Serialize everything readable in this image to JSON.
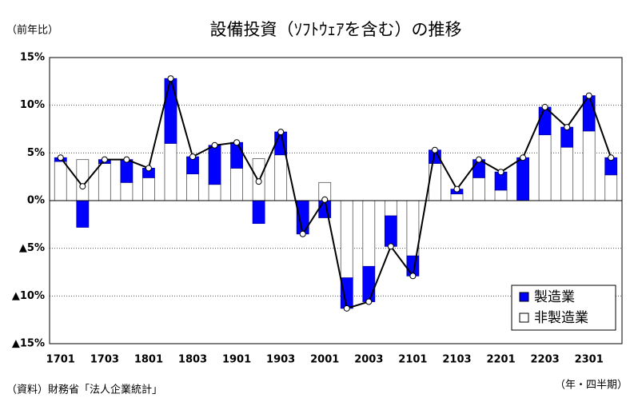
{
  "chart_data": {
    "type": "bar",
    "title": "設備投資（ｿﾌﾄｳｪｱを含む）の推移",
    "y_label": "（前年比）",
    "source": "（資料）財務省「法人企業統計」",
    "x_label": "（年・四半期）",
    "stacked": true,
    "line_total": true,
    "categories": [
      "1701",
      null,
      "1703",
      null,
      "1801",
      null,
      "1803",
      null,
      "1901",
      null,
      "1903",
      null,
      "2001",
      null,
      "2003",
      null,
      "2101",
      null,
      "2103",
      null,
      "2201",
      null,
      "2203",
      null,
      "2301",
      null
    ],
    "series": [
      {
        "name": "製造業",
        "color": "#0000ff",
        "values": [
          0.4,
          -2.8,
          0.4,
          2.4,
          1.0,
          6.8,
          1.8,
          4.1,
          2.7,
          -2.4,
          2.4,
          -3.5,
          -1.8,
          -3.2,
          -3.7,
          -3.2,
          -2.1,
          1.4,
          0.5,
          1.9,
          1.9,
          4.5,
          2.9,
          2.1,
          3.7,
          1.8
        ]
      },
      {
        "name": "非製造業",
        "color": "#ffffff",
        "values": [
          4.1,
          4.3,
          3.9,
          1.9,
          2.4,
          6.0,
          2.8,
          1.7,
          3.4,
          4.4,
          4.8,
          0,
          1.9,
          -8.1,
          -6.9,
          -1.6,
          -5.8,
          3.9,
          0.7,
          2.4,
          1.1,
          0,
          6.9,
          5.6,
          7.3,
          2.7
        ]
      }
    ],
    "ylim": [
      -15,
      15
    ],
    "yticks": [
      {
        "value": 15,
        "label": "15%"
      },
      {
        "value": 10,
        "label": "10%"
      },
      {
        "value": 5,
        "label": "5%"
      },
      {
        "value": 0,
        "label": "0%"
      },
      {
        "value": -5,
        "label": "▲5%"
      },
      {
        "value": -10,
        "label": "▲10%"
      },
      {
        "value": -15,
        "label": "▲15%"
      }
    ],
    "grid": true,
    "legend": "lower right"
  }
}
